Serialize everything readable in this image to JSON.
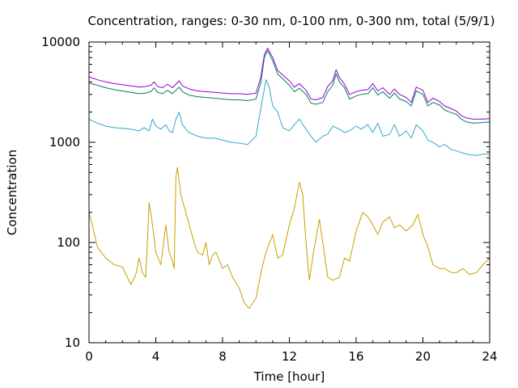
{
  "chart_data": {
    "type": "line",
    "title": "Concentration, ranges: 0-30 nm, 0-100 nm, 0-300 nm, total (5/9/1)",
    "xlabel": "Time [hour]",
    "ylabel": "Concentration",
    "xlim": [
      0,
      24
    ],
    "ylim": [
      10,
      10000
    ],
    "yscale": "log",
    "grid": false,
    "legend": "none",
    "x_ticks": [
      "0",
      "4",
      "8",
      "12",
      "16",
      "20",
      "24"
    ],
    "y_ticks": [
      "10",
      "100",
      "1000",
      "10000"
    ],
    "series": [
      {
        "color": "#c8a000",
        "points": [
          [
            0,
            200
          ],
          [
            0.2,
            150
          ],
          [
            0.5,
            90
          ],
          [
            1,
            70
          ],
          [
            1.5,
            60
          ],
          [
            2,
            57
          ],
          [
            2.3,
            45
          ],
          [
            2.5,
            38
          ],
          [
            2.8,
            48
          ],
          [
            3,
            70
          ],
          [
            3.2,
            50
          ],
          [
            3.4,
            45
          ],
          [
            3.6,
            250
          ],
          [
            3.8,
            150
          ],
          [
            4,
            80
          ],
          [
            4.3,
            60
          ],
          [
            4.6,
            150
          ],
          [
            4.8,
            80
          ],
          [
            5,
            65
          ],
          [
            5.1,
            55
          ],
          [
            5.2,
            450
          ],
          [
            5.3,
            560
          ],
          [
            5.5,
            300
          ],
          [
            5.8,
            200
          ],
          [
            6,
            150
          ],
          [
            6.3,
            100
          ],
          [
            6.5,
            80
          ],
          [
            6.8,
            75
          ],
          [
            7,
            100
          ],
          [
            7.2,
            60
          ],
          [
            7.4,
            75
          ],
          [
            7.6,
            80
          ],
          [
            8,
            55
          ],
          [
            8.3,
            60
          ],
          [
            8.6,
            45
          ],
          [
            9,
            35
          ],
          [
            9.3,
            25
          ],
          [
            9.6,
            22
          ],
          [
            10,
            28
          ],
          [
            10.3,
            50
          ],
          [
            10.6,
            80
          ],
          [
            11,
            120
          ],
          [
            11.3,
            70
          ],
          [
            11.6,
            75
          ],
          [
            12,
            150
          ],
          [
            12.3,
            220
          ],
          [
            12.6,
            400
          ],
          [
            12.8,
            300
          ],
          [
            13,
            100
          ],
          [
            13.2,
            42
          ],
          [
            13.5,
            90
          ],
          [
            13.8,
            170
          ],
          [
            14,
            100
          ],
          [
            14.3,
            45
          ],
          [
            14.6,
            42
          ],
          [
            15,
            45
          ],
          [
            15.3,
            70
          ],
          [
            15.6,
            65
          ],
          [
            16,
            130
          ],
          [
            16.4,
            200
          ],
          [
            16.7,
            180
          ],
          [
            17,
            150
          ],
          [
            17.3,
            120
          ],
          [
            17.6,
            160
          ],
          [
            18,
            180
          ],
          [
            18.3,
            140
          ],
          [
            18.6,
            150
          ],
          [
            19,
            130
          ],
          [
            19.4,
            150
          ],
          [
            19.7,
            190
          ],
          [
            20,
            120
          ],
          [
            20.3,
            90
          ],
          [
            20.6,
            60
          ],
          [
            21,
            55
          ],
          [
            21.3,
            55
          ],
          [
            21.7,
            50
          ],
          [
            22,
            50
          ],
          [
            22.4,
            55
          ],
          [
            22.8,
            48
          ],
          [
            23.2,
            50
          ],
          [
            23.6,
            60
          ],
          [
            24,
            70
          ]
        ]
      },
      {
        "color": "#30a8d0",
        "points": [
          [
            0,
            1700
          ],
          [
            0.5,
            1550
          ],
          [
            1,
            1450
          ],
          [
            1.5,
            1400
          ],
          [
            2,
            1380
          ],
          [
            2.5,
            1350
          ],
          [
            3,
            1300
          ],
          [
            3.3,
            1400
          ],
          [
            3.6,
            1300
          ],
          [
            3.8,
            1700
          ],
          [
            4,
            1450
          ],
          [
            4.3,
            1350
          ],
          [
            4.6,
            1500
          ],
          [
            4.8,
            1300
          ],
          [
            5,
            1250
          ],
          [
            5.2,
            1700
          ],
          [
            5.4,
            2000
          ],
          [
            5.6,
            1500
          ],
          [
            5.8,
            1350
          ],
          [
            6,
            1250
          ],
          [
            6.5,
            1150
          ],
          [
            7,
            1100
          ],
          [
            7.5,
            1100
          ],
          [
            8,
            1050
          ],
          [
            8.5,
            1000
          ],
          [
            9,
            980
          ],
          [
            9.5,
            950
          ],
          [
            10,
            1150
          ],
          [
            10.3,
            2200
          ],
          [
            10.6,
            4200
          ],
          [
            10.8,
            3500
          ],
          [
            11,
            2300
          ],
          [
            11.3,
            2000
          ],
          [
            11.6,
            1400
          ],
          [
            12,
            1300
          ],
          [
            12.3,
            1500
          ],
          [
            12.6,
            1700
          ],
          [
            13,
            1350
          ],
          [
            13.3,
            1150
          ],
          [
            13.6,
            1000
          ],
          [
            14,
            1150
          ],
          [
            14.3,
            1200
          ],
          [
            14.6,
            1450
          ],
          [
            15,
            1350
          ],
          [
            15.3,
            1250
          ],
          [
            15.6,
            1300
          ],
          [
            16,
            1450
          ],
          [
            16.3,
            1350
          ],
          [
            16.7,
            1500
          ],
          [
            17,
            1250
          ],
          [
            17.3,
            1550
          ],
          [
            17.6,
            1150
          ],
          [
            18,
            1200
          ],
          [
            18.3,
            1500
          ],
          [
            18.6,
            1150
          ],
          [
            19,
            1300
          ],
          [
            19.3,
            1100
          ],
          [
            19.6,
            1500
          ],
          [
            20,
            1300
          ],
          [
            20.3,
            1050
          ],
          [
            20.6,
            1000
          ],
          [
            21,
            900
          ],
          [
            21.3,
            950
          ],
          [
            21.7,
            850
          ],
          [
            22,
            820
          ],
          [
            22.4,
            780
          ],
          [
            22.8,
            750
          ],
          [
            23.2,
            740
          ],
          [
            23.6,
            760
          ],
          [
            24,
            760
          ]
        ]
      },
      {
        "color": "#008060",
        "points": [
          [
            0,
            3900
          ],
          [
            0.5,
            3700
          ],
          [
            1,
            3500
          ],
          [
            1.5,
            3350
          ],
          [
            2,
            3250
          ],
          [
            2.5,
            3150
          ],
          [
            3,
            3050
          ],
          [
            3.4,
            3100
          ],
          [
            3.7,
            3200
          ],
          [
            3.9,
            3500
          ],
          [
            4.1,
            3150
          ],
          [
            4.4,
            3050
          ],
          [
            4.7,
            3300
          ],
          [
            5,
            3050
          ],
          [
            5.2,
            3300
          ],
          [
            5.4,
            3550
          ],
          [
            5.6,
            3200
          ],
          [
            6,
            2950
          ],
          [
            6.5,
            2850
          ],
          [
            7,
            2800
          ],
          [
            7.5,
            2750
          ],
          [
            8,
            2700
          ],
          [
            8.5,
            2650
          ],
          [
            9,
            2650
          ],
          [
            9.5,
            2600
          ],
          [
            10,
            2700
          ],
          [
            10.3,
            4000
          ],
          [
            10.5,
            7000
          ],
          [
            10.7,
            8200
          ],
          [
            11,
            6500
          ],
          [
            11.3,
            4800
          ],
          [
            11.6,
            4300
          ],
          [
            12,
            3700
          ],
          [
            12.3,
            3200
          ],
          [
            12.6,
            3450
          ],
          [
            13,
            3000
          ],
          [
            13.3,
            2450
          ],
          [
            13.6,
            2400
          ],
          [
            14,
            2500
          ],
          [
            14.3,
            3200
          ],
          [
            14.6,
            3700
          ],
          [
            14.8,
            4800
          ],
          [
            15,
            4000
          ],
          [
            15.3,
            3500
          ],
          [
            15.6,
            2700
          ],
          [
            16,
            2900
          ],
          [
            16.3,
            3000
          ],
          [
            16.7,
            3050
          ],
          [
            17,
            3500
          ],
          [
            17.3,
            2950
          ],
          [
            17.6,
            3200
          ],
          [
            18,
            2750
          ],
          [
            18.3,
            3100
          ],
          [
            18.6,
            2700
          ],
          [
            19,
            2550
          ],
          [
            19.3,
            2300
          ],
          [
            19.6,
            3250
          ],
          [
            20,
            3000
          ],
          [
            20.3,
            2300
          ],
          [
            20.6,
            2500
          ],
          [
            21,
            2350
          ],
          [
            21.3,
            2100
          ],
          [
            21.6,
            2000
          ],
          [
            22,
            1900
          ],
          [
            22.3,
            1700
          ],
          [
            22.6,
            1600
          ],
          [
            23,
            1550
          ],
          [
            23.5,
            1570
          ],
          [
            24,
            1600
          ]
        ]
      },
      {
        "color": "#9400d3",
        "points": [
          [
            0,
            4500
          ],
          [
            0.5,
            4200
          ],
          [
            1,
            4000
          ],
          [
            1.5,
            3850
          ],
          [
            2,
            3750
          ],
          [
            2.5,
            3650
          ],
          [
            3,
            3550
          ],
          [
            3.4,
            3600
          ],
          [
            3.7,
            3700
          ],
          [
            3.9,
            4000
          ],
          [
            4.1,
            3600
          ],
          [
            4.4,
            3500
          ],
          [
            4.7,
            3800
          ],
          [
            5,
            3500
          ],
          [
            5.2,
            3800
          ],
          [
            5.4,
            4100
          ],
          [
            5.6,
            3650
          ],
          [
            6,
            3400
          ],
          [
            6.5,
            3250
          ],
          [
            7,
            3200
          ],
          [
            7.5,
            3150
          ],
          [
            8,
            3100
          ],
          [
            8.5,
            3050
          ],
          [
            9,
            3050
          ],
          [
            9.5,
            3000
          ],
          [
            10,
            3100
          ],
          [
            10.3,
            4500
          ],
          [
            10.5,
            7500
          ],
          [
            10.7,
            8700
          ],
          [
            11,
            7000
          ],
          [
            11.3,
            5200
          ],
          [
            11.6,
            4700
          ],
          [
            12,
            4100
          ],
          [
            12.3,
            3550
          ],
          [
            12.6,
            3850
          ],
          [
            13,
            3300
          ],
          [
            13.3,
            2700
          ],
          [
            13.6,
            2650
          ],
          [
            14,
            2800
          ],
          [
            14.3,
            3600
          ],
          [
            14.6,
            4100
          ],
          [
            14.8,
            5300
          ],
          [
            15,
            4400
          ],
          [
            15.3,
            3800
          ],
          [
            15.6,
            3000
          ],
          [
            16,
            3200
          ],
          [
            16.3,
            3300
          ],
          [
            16.7,
            3350
          ],
          [
            17,
            3850
          ],
          [
            17.3,
            3250
          ],
          [
            17.6,
            3500
          ],
          [
            18,
            3000
          ],
          [
            18.3,
            3400
          ],
          [
            18.6,
            3000
          ],
          [
            19,
            2800
          ],
          [
            19.3,
            2500
          ],
          [
            19.6,
            3550
          ],
          [
            20,
            3300
          ],
          [
            20.3,
            2500
          ],
          [
            20.6,
            2750
          ],
          [
            21,
            2550
          ],
          [
            21.3,
            2300
          ],
          [
            21.6,
            2200
          ],
          [
            22,
            2050
          ],
          [
            22.3,
            1850
          ],
          [
            22.6,
            1750
          ],
          [
            23,
            1700
          ],
          [
            23.5,
            1700
          ],
          [
            24,
            1720
          ]
        ]
      }
    ]
  }
}
